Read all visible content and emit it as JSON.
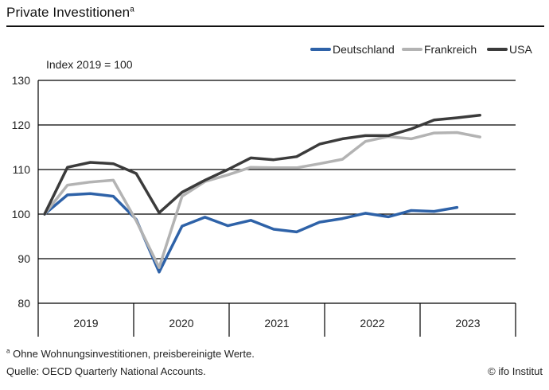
{
  "header": {
    "title": "Private Investitionen",
    "title_footnote_mark": "a"
  },
  "footer": {
    "note_mark": "a",
    "note": "Ohne Wohnungsinvestitionen, preisbereinigte Werte.",
    "source": "Quelle: OECD Quarterly National Accounts.",
    "copyright": "© ifo Institut"
  },
  "chart_data": {
    "type": "line",
    "title": "Private Investitionen",
    "annotation": "Index 2019 = 100",
    "xlabel": "",
    "ylabel": "",
    "ylim": [
      80,
      130
    ],
    "yticks": [
      80,
      90,
      100,
      110,
      120,
      130
    ],
    "grid": true,
    "legend_position": "top-right",
    "year_labels": [
      "2019",
      "2020",
      "2021",
      "2022",
      "2023"
    ],
    "x": [
      "2018Q4",
      "2019Q1",
      "2019Q2",
      "2019Q3",
      "2019Q4",
      "2020Q1",
      "2020Q2",
      "2020Q3",
      "2020Q4",
      "2021Q1",
      "2021Q2",
      "2021Q3",
      "2021Q4",
      "2022Q1",
      "2022Q2",
      "2022Q3",
      "2022Q4",
      "2023Q1",
      "2023Q2",
      "2023Q3",
      "2023Q4"
    ],
    "series": [
      {
        "name": "Deutschland",
        "color": "#2e62a8",
        "values": [
          100,
          104.3,
          104.6,
          104.0,
          98.8,
          87.0,
          97.3,
          99.3,
          97.4,
          98.6,
          96.6,
          96.0,
          98.2,
          99.0,
          100.2,
          99.4,
          100.8,
          100.6,
          101.5,
          null,
          null
        ]
      },
      {
        "name": "Frankreich",
        "color": "#b3b3b3",
        "values": [
          100,
          106.5,
          107.2,
          107.6,
          98.5,
          88.0,
          104.0,
          107.3,
          108.8,
          110.5,
          110.4,
          110.4,
          111.3,
          112.3,
          116.3,
          117.4,
          116.9,
          118.2,
          118.3,
          117.3,
          null
        ]
      },
      {
        "name": "USA",
        "color": "#3b3b3b",
        "values": [
          100,
          110.5,
          111.6,
          111.3,
          109.1,
          100.3,
          104.9,
          107.6,
          110.0,
          112.6,
          112.2,
          112.9,
          115.7,
          116.9,
          117.6,
          117.6,
          119.1,
          121.1,
          121.6,
          122.2,
          null
        ]
      }
    ]
  }
}
